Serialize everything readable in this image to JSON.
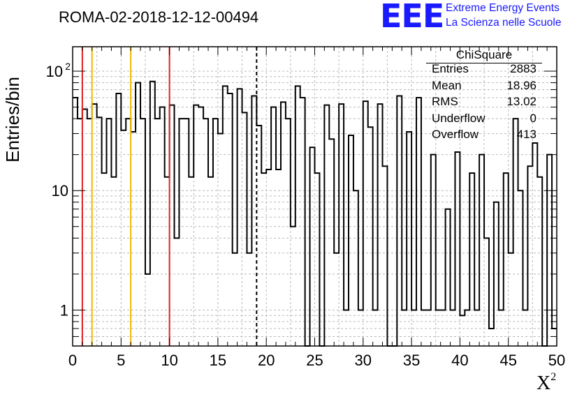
{
  "title": "ROMA-02-2018-12-12-00494",
  "logo": {
    "text": "EEE",
    "line1": "Extreme Energy Events",
    "line2": "La Scienza nelle Scuole",
    "color": "#1a1aff"
  },
  "stats": {
    "title": "ChiSquare",
    "rows": [
      {
        "label": "Entries",
        "value": "2883"
      },
      {
        "label": "Mean",
        "value": "18.96"
      },
      {
        "label": "RMS",
        "value": "13.02"
      },
      {
        "label": "Underflow",
        "value": "0"
      },
      {
        "label": "Overflow",
        "value": "413"
      }
    ]
  },
  "chart_data": {
    "type": "histogram",
    "title": "ROMA-02-2018-12-12-00494",
    "xlabel": "X",
    "xlabel_superscript": "2",
    "ylabel": "Entries/bin",
    "x_range": [
      0,
      50
    ],
    "y_range": [
      0.5,
      160
    ],
    "y_scale": "log",
    "bin_width": 0.5,
    "grid": true,
    "x_ticks": [
      "0",
      "5",
      "10",
      "15",
      "20",
      "25",
      "30",
      "35",
      "40",
      "45",
      "50"
    ],
    "y_ticks": [
      {
        "value": 1,
        "label": "1"
      },
      {
        "value": 10,
        "label": "10"
      },
      {
        "value": 100,
        "label": "10",
        "exp": "2"
      }
    ],
    "values": [
      60,
      40,
      48,
      40,
      53,
      41,
      14,
      40,
      13,
      65,
      32,
      40,
      31,
      80,
      40,
      2,
      82,
      40,
      50,
      13,
      52,
      4,
      40,
      40,
      13,
      52,
      50,
      40,
      13,
      40,
      30,
      75,
      65,
      3,
      71,
      45,
      3,
      62,
      35,
      14,
      15,
      50,
      15,
      55,
      40,
      5,
      75,
      60,
      0,
      23,
      14,
      0,
      52,
      27,
      3,
      53,
      1,
      29,
      10,
      1,
      56,
      34,
      1,
      53,
      16,
      0,
      0,
      62,
      1,
      31,
      1,
      60,
      1,
      1,
      20,
      1,
      1,
      7,
      1,
      21,
      0.9,
      1,
      14,
      1,
      20,
      4,
      0.7,
      8,
      1,
      14,
      3,
      40,
      10,
      1,
      16,
      25,
      13,
      0,
      20,
      0.7
    ],
    "vlines": [
      {
        "x": 1,
        "color": "#e0201c",
        "style": "solid"
      },
      {
        "x": 2,
        "color": "#f0b800",
        "style": "solid"
      },
      {
        "x": 6,
        "color": "#f0b800",
        "style": "solid"
      },
      {
        "x": 10,
        "color": "#e0201c",
        "style": "solid"
      },
      {
        "x": 19,
        "color": "#000000",
        "style": "dashed"
      }
    ]
  }
}
